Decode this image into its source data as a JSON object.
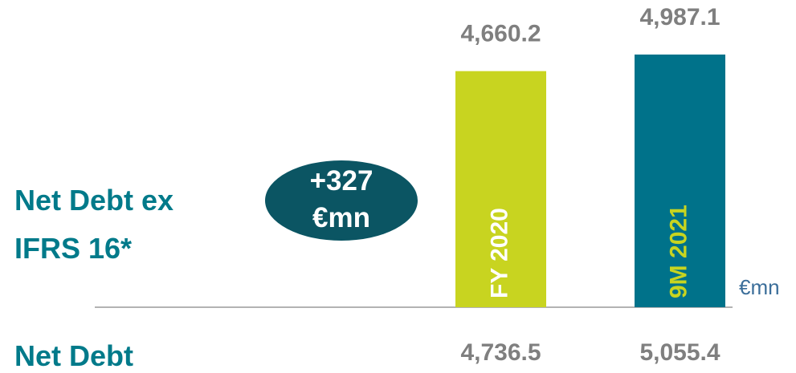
{
  "chart_data": {
    "type": "bar",
    "series_label": "Net Debt ex IFRS 16*",
    "categories": [
      "FY 2020",
      "9M 2021"
    ],
    "values": [
      4660.2,
      4987.1
    ],
    "value_labels": [
      "4,660.2",
      "4,987.1"
    ],
    "colors": [
      "#c8d420",
      "#00728a"
    ],
    "category_label_colors": [
      "#ffffff",
      "#c8d420"
    ],
    "unit": "€mn",
    "annotation": "+327 €mn",
    "annotation_color": "#0b5563",
    "secondary": {
      "label": "Net Debt",
      "values": [
        4736.5,
        5055.4
      ],
      "value_labels": [
        "4,736.5",
        "5,055.4"
      ]
    }
  }
}
